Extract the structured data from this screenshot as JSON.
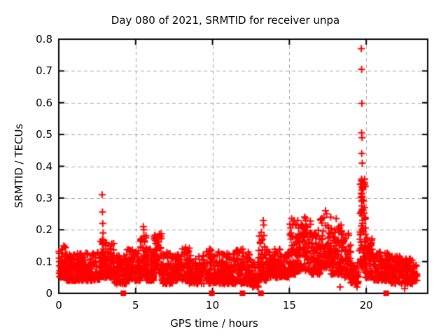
{
  "window": {
    "background": "#ffffff"
  },
  "chart_data": {
    "type": "scatter",
    "title": "Day 080 of 2021, SRMTID for receiver unpa",
    "xlabel": "GPS time / hours",
    "ylabel": "SRMTID / TECUs",
    "xlim": [
      0,
      24
    ],
    "ylim": [
      0,
      0.8
    ],
    "xticks": [
      {
        "v": 0,
        "label": "0"
      },
      {
        "v": 5,
        "label": "5"
      },
      {
        "v": 10,
        "label": "10"
      },
      {
        "v": 15,
        "label": "15"
      },
      {
        "v": 20,
        "label": "20"
      }
    ],
    "yticks": [
      {
        "v": 0.0,
        "label": "0"
      },
      {
        "v": 0.1,
        "label": "0.1"
      },
      {
        "v": 0.2,
        "label": "0.2"
      },
      {
        "v": 0.3,
        "label": "0.3"
      },
      {
        "v": 0.4,
        "label": "0.4"
      },
      {
        "v": 0.5,
        "label": "0.5"
      },
      {
        "v": 0.6,
        "label": "0.6"
      },
      {
        "v": 0.7,
        "label": "0.7"
      },
      {
        "v": 0.8,
        "label": "0.8"
      }
    ],
    "grid": true,
    "legend": "none",
    "colors": {
      "grid": "#a0a0a0",
      "border": "#000000",
      "text": "#000000"
    },
    "marker": {
      "shape": "plus",
      "color": "#ff0000",
      "half": 5,
      "stroke": 2
    },
    "series": [
      {
        "name": "SRMTID",
        "seed": 11,
        "power": 1.6,
        "segments": [
          [
            0.0,
            0.5,
            60,
            0.05,
            0.15
          ],
          [
            0.5,
            2.7,
            240,
            0.04,
            0.13
          ],
          [
            2.7,
            3.0,
            40,
            0.05,
            0.17
          ],
          [
            3.0,
            3.6,
            70,
            0.05,
            0.16
          ],
          [
            3.6,
            4.4,
            80,
            0.03,
            0.12
          ],
          [
            4.4,
            5.3,
            90,
            0.04,
            0.14
          ],
          [
            5.3,
            5.7,
            50,
            0.05,
            0.19
          ],
          [
            5.7,
            6.2,
            60,
            0.04,
            0.14
          ],
          [
            6.2,
            6.7,
            60,
            0.06,
            0.19
          ],
          [
            6.7,
            7.5,
            80,
            0.03,
            0.13
          ],
          [
            7.5,
            8.5,
            100,
            0.04,
            0.15
          ],
          [
            8.5,
            9.5,
            100,
            0.03,
            0.12
          ],
          [
            9.5,
            10.5,
            100,
            0.03,
            0.14
          ],
          [
            10.5,
            11.5,
            100,
            0.03,
            0.13
          ],
          [
            11.5,
            12.5,
            100,
            0.03,
            0.14
          ],
          [
            12.5,
            13.0,
            50,
            0.02,
            0.1
          ],
          [
            13.0,
            13.5,
            50,
            0.04,
            0.2
          ],
          [
            13.5,
            14.5,
            100,
            0.05,
            0.14
          ],
          [
            14.5,
            15.0,
            50,
            0.05,
            0.13
          ],
          [
            15.0,
            15.5,
            55,
            0.06,
            0.22
          ],
          [
            15.5,
            16.4,
            95,
            0.07,
            0.23
          ],
          [
            16.4,
            17.0,
            65,
            0.06,
            0.2
          ],
          [
            17.0,
            17.7,
            75,
            0.08,
            0.24
          ],
          [
            17.7,
            18.4,
            75,
            0.06,
            0.22
          ],
          [
            18.4,
            19.0,
            65,
            0.05,
            0.19
          ],
          [
            19.0,
            19.55,
            55,
            0.03,
            0.1
          ],
          [
            19.55,
            19.95,
            70,
            0.08,
            0.36
          ],
          [
            19.95,
            20.45,
            60,
            0.05,
            0.18
          ],
          [
            20.45,
            21.5,
            110,
            0.04,
            0.13
          ],
          [
            21.5,
            22.3,
            85,
            0.03,
            0.12
          ],
          [
            22.3,
            23.0,
            75,
            0.03,
            0.11
          ],
          [
            23.0,
            23.3,
            25,
            0.04,
            0.09
          ]
        ],
        "outliers": [
          [
            2.82,
            0.31
          ],
          [
            2.84,
            0.256
          ],
          [
            2.86,
            0.22
          ],
          [
            2.88,
            0.19
          ],
          [
            5.5,
            0.21
          ],
          [
            5.53,
            0.2
          ],
          [
            13.3,
            0.229
          ],
          [
            13.33,
            0.215
          ],
          [
            15.15,
            0.235
          ],
          [
            15.3,
            0.23
          ],
          [
            16.0,
            0.24
          ],
          [
            16.06,
            0.235
          ],
          [
            17.35,
            0.26
          ],
          [
            17.42,
            0.25
          ],
          [
            18.05,
            0.235
          ],
          [
            19.68,
            0.77
          ],
          [
            19.7,
            0.705
          ],
          [
            19.72,
            0.598
          ],
          [
            19.7,
            0.505
          ],
          [
            19.73,
            0.49
          ],
          [
            19.71,
            0.44
          ],
          [
            19.74,
            0.41
          ],
          [
            19.7,
            0.36
          ],
          [
            19.72,
            0.355
          ],
          [
            19.69,
            0.345
          ],
          [
            19.73,
            0.335
          ],
          [
            19.71,
            0.325
          ],
          [
            19.74,
            0.305
          ],
          [
            19.7,
            0.29
          ],
          [
            19.72,
            0.275
          ],
          [
            19.75,
            0.265
          ],
          [
            19.68,
            0.255
          ],
          [
            19.73,
            0.245
          ],
          [
            19.76,
            0.23
          ],
          [
            18.3,
            0.02
          ],
          [
            19.4,
            0.02
          ],
          [
            22.5,
            0.015
          ]
        ]
      }
    ],
    "zero_markers": {
      "shape": "square",
      "color": "#ff0000",
      "size": 8,
      "y": 0,
      "x": [
        4.2,
        9.95,
        11.95,
        13.15,
        21.3
      ]
    }
  }
}
